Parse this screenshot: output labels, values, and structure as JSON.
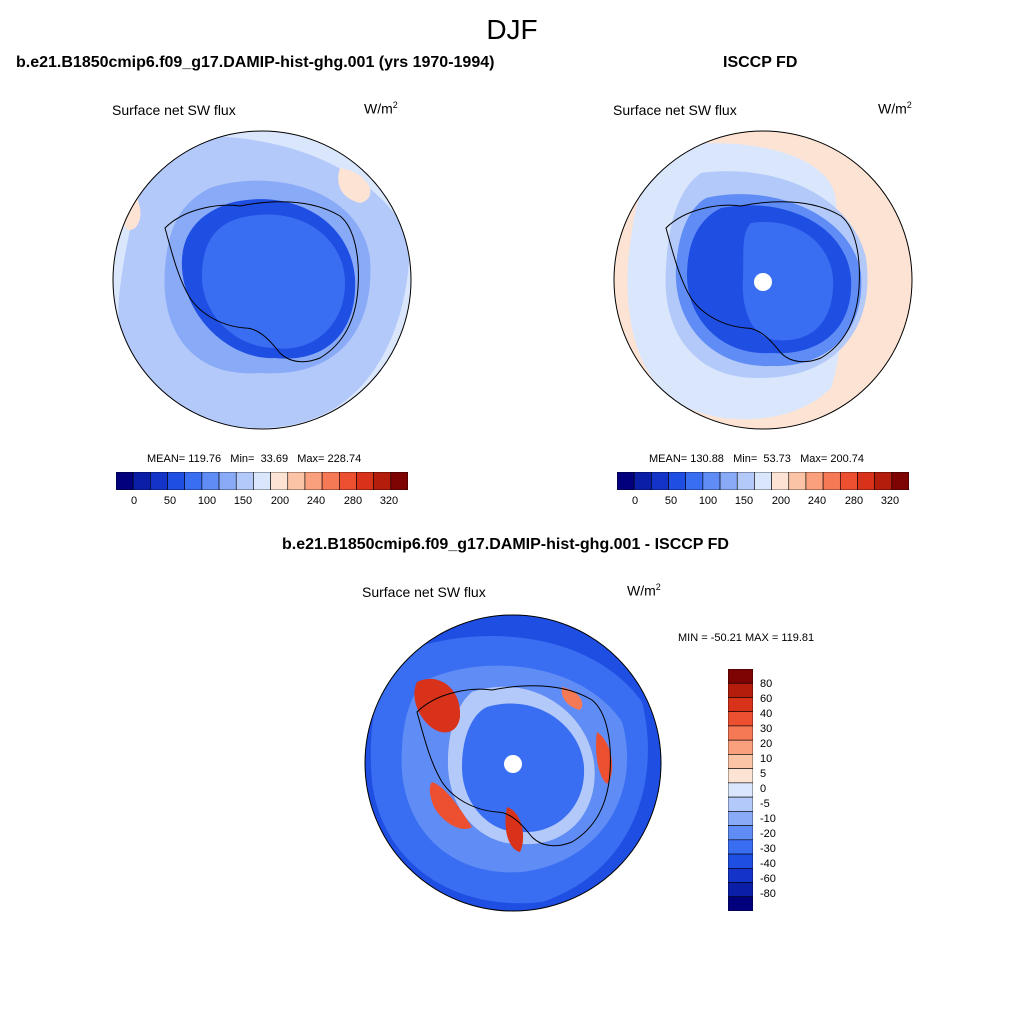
{
  "main_title": "DJF",
  "colors": {
    "abs_scale": [
      "#02007c",
      "#0a1ea8",
      "#1433c8",
      "#1f4ee3",
      "#3a6ef2",
      "#5f8cf5",
      "#89aaf7",
      "#b3c9fa",
      "#dae6fc",
      "#fde3d3",
      "#fcc4a6",
      "#faa07c",
      "#f67955",
      "#ec5030",
      "#d8321a",
      "#b41d0c",
      "#7e0303"
    ],
    "diff_scale": [
      "#7e0303",
      "#b41d0c",
      "#d8321a",
      "#ec5030",
      "#f67955",
      "#faa07c",
      "#fcc4a6",
      "#fde3d3",
      "#dae6fc",
      "#b3c9fa",
      "#89aaf7",
      "#5f8cf5",
      "#3a6ef2",
      "#1f4ee3",
      "#1433c8",
      "#0a1ea8",
      "#02007c"
    ]
  },
  "panels": {
    "left": {
      "title": "b.e21.B1850cmip6.f09_g17.DAMIP-hist-ghg.001 (yrs 1970-1994)",
      "variable": "Surface net SW flux",
      "units": "W/m",
      "units_sup": "2",
      "mean_label": "MEAN=",
      "mean": "119.76",
      "min_label": "Min=",
      "min": "33.69",
      "max_label": "Max=",
      "max": "228.74"
    },
    "right": {
      "title": "ISCCP FD",
      "variable": "Surface net SW flux",
      "units": "W/m",
      "units_sup": "2",
      "mean_label": "MEAN=",
      "mean": "130.88",
      "min_label": "Min=",
      "min": "53.73",
      "max_label": "Max=",
      "max": "200.74"
    },
    "diff": {
      "title": "b.e21.B1850cmip6.f09_g17.DAMIP-hist-ghg.001 - ISCCP FD",
      "variable": "Surface net SW flux",
      "units": "W/m",
      "units_sup": "2",
      "minmax": "MIN = -50.21 MAX = 119.81"
    }
  },
  "abs_ticks": [
    "0",
    "50",
    "100",
    "150",
    "200",
    "240",
    "280",
    "320"
  ],
  "diff_ticks": [
    "80",
    "60",
    "40",
    "30",
    "20",
    "10",
    "5",
    "0",
    "-5",
    "-10",
    "-20",
    "-30",
    "-40",
    "-60",
    "-80"
  ]
}
